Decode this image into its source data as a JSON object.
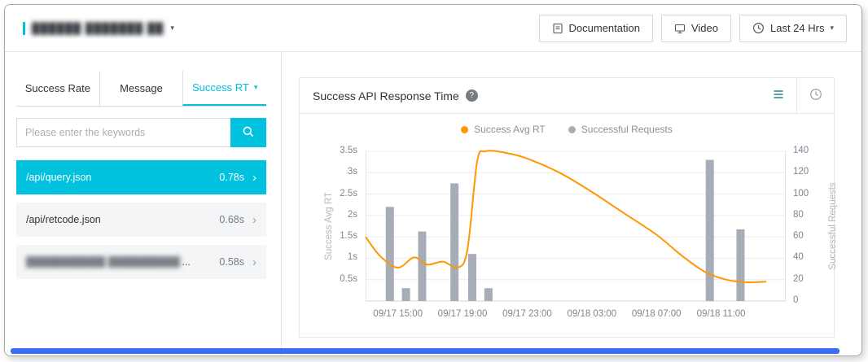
{
  "colors": {
    "accent": "#00c1de",
    "scrollbar_blue": "#3d6cf7"
  },
  "glyphs": {
    "caret_down": "▾",
    "chevron_right": "›",
    "help": "?",
    "ellipsis": "..."
  },
  "header": {
    "app_title": "██████ ███████ ██",
    "documentation_label": "Documentation",
    "video_label": "Video",
    "time_range_label": "Last 24 Hrs"
  },
  "tabs": {
    "items": [
      {
        "label": "Success Rate",
        "active": false
      },
      {
        "label": "Message",
        "active": false
      },
      {
        "label": "Success RT",
        "active": true
      }
    ]
  },
  "search": {
    "placeholder": "Please enter the keywords"
  },
  "list": {
    "items": [
      {
        "name": "/api/query.json",
        "value": "0.78s",
        "selected": true
      },
      {
        "name": "/api/retcode.json",
        "value": "0.68s",
        "selected": false
      },
      {
        "name": "███████████ ██████████",
        "value": "0.58s",
        "selected": false,
        "redacted": true
      }
    ]
  },
  "chart_data": {
    "type": "line+bar",
    "title": "Success API Response Time",
    "legend": [
      {
        "name": "Success Avg RT",
        "color": "#ff9800",
        "type": "line"
      },
      {
        "name": "Successful Requests",
        "color": "#a7adb6",
        "type": "bar"
      }
    ],
    "x_axis": {
      "labels": [
        "09/17 15:00",
        "09/17 19:00",
        "09/17 23:00",
        "09/18 03:00",
        "09/18 07:00",
        "09/18 11:00"
      ],
      "label_hours": [
        2,
        6,
        10,
        14,
        18,
        22
      ],
      "domain_hours": [
        0,
        26
      ],
      "start_time": "09/17 13:00"
    },
    "y_left": {
      "label": "Success Avg RT",
      "tick_labels": [
        "3.5s",
        "3s",
        "2.5s",
        "2s",
        "1.5s",
        "1s",
        "0.5s"
      ],
      "tick_values": [
        3.5,
        3,
        2.5,
        2,
        1.5,
        1,
        0.5
      ],
      "min": 0,
      "max": 3.5,
      "unit": "s"
    },
    "y_right": {
      "label": "Successful Requests",
      "tick_labels": [
        "140",
        "120",
        "100",
        "80",
        "60",
        "40",
        "20",
        "0"
      ],
      "tick_values": [
        140,
        120,
        100,
        80,
        60,
        40,
        20,
        0
      ],
      "min": 0,
      "max": 140
    },
    "bars": [
      {
        "hour": 1.5,
        "value": 88
      },
      {
        "hour": 2.5,
        "value": 12
      },
      {
        "hour": 3.5,
        "value": 65
      },
      {
        "hour": 5.5,
        "value": 110
      },
      {
        "hour": 6.6,
        "value": 44
      },
      {
        "hour": 7.6,
        "value": 12
      },
      {
        "hour": 21.3,
        "value": 132
      },
      {
        "hour": 23.2,
        "value": 67
      }
    ],
    "line_points": [
      [
        0,
        1.5
      ],
      [
        0.9,
        1.05
      ],
      [
        2,
        0.78
      ],
      [
        3,
        1.02
      ],
      [
        3.8,
        0.85
      ],
      [
        4.8,
        0.92
      ],
      [
        5.7,
        0.78
      ],
      [
        6.3,
        1.2
      ],
      [
        6.9,
        3.25
      ],
      [
        7.4,
        3.5
      ],
      [
        8.6,
        3.47
      ],
      [
        10,
        3.33
      ],
      [
        12,
        3.0
      ],
      [
        14,
        2.55
      ],
      [
        16,
        2.05
      ],
      [
        18,
        1.55
      ],
      [
        19.5,
        1.08
      ],
      [
        21,
        0.68
      ],
      [
        22.3,
        0.5
      ],
      [
        23.5,
        0.44
      ],
      [
        24.8,
        0.45
      ]
    ]
  }
}
